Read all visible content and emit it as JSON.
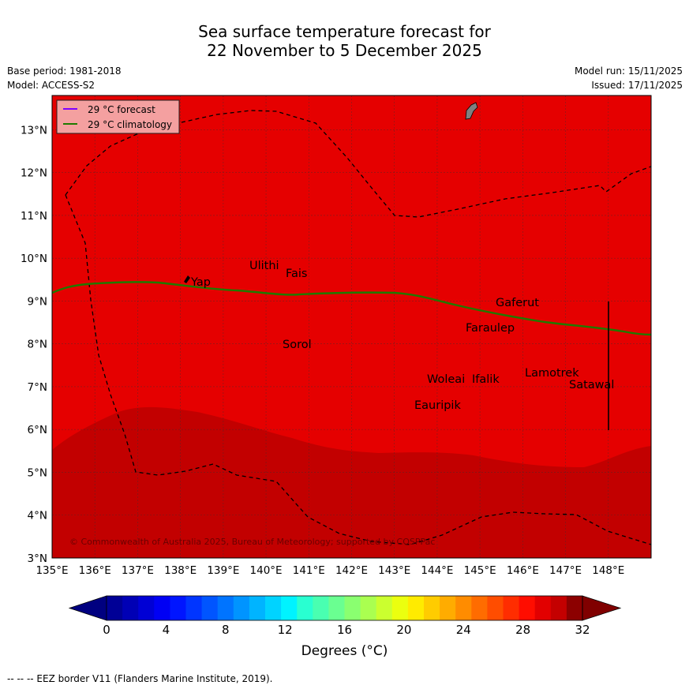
{
  "title": {
    "line1": "Sea surface temperature forecast for",
    "line2": "22 November to 5 December 2025"
  },
  "meta_left": {
    "base_period": "Base period: 1981-2018",
    "model": "Model: ACCESS-S2"
  },
  "meta_right": {
    "model_run": "Model run: 15/11/2025",
    "issued": "Issued: 17/11/2025"
  },
  "legend": {
    "forecast": "29 °C  forecast",
    "climatology": "29 °C  climatology",
    "forecast_color": "#7f00ff",
    "climatology_color": "#1f7a00"
  },
  "map": {
    "lon_range": [
      135,
      149
    ],
    "lat_range": [
      3,
      13.8
    ],
    "lon_ticks": [
      "135°E",
      "136°E",
      "137°E",
      "138°E",
      "139°E",
      "140°E",
      "141°E",
      "142°E",
      "143°E",
      "144°E",
      "145°E",
      "146°E",
      "147°E",
      "148°E"
    ],
    "lat_ticks": [
      "3°N",
      "4°N",
      "5°N",
      "6°N",
      "7°N",
      "8°N",
      "9°N",
      "10°N",
      "11°N",
      "12°N",
      "13°N"
    ],
    "colors": {
      "warm": "#e50000",
      "hot": "#c20000",
      "land": "#808080"
    },
    "places": [
      "Ulithi",
      "Fais",
      "Yap",
      "Gaferut",
      "Faraulep",
      "Sorol",
      "Lamotrek",
      "Woleai",
      "Ifalik",
      "Satawal",
      "Eauripik"
    ],
    "copyright": "© Commonwealth of Australia 2025, Bureau of Meteorology; supported by COSPPac"
  },
  "colorbar": {
    "tick_labels": [
      "0",
      "4",
      "8",
      "12",
      "16",
      "20",
      "24",
      "28",
      "32"
    ],
    "label": "Degrees (°C)",
    "colors": [
      "#000096",
      "#0000b5",
      "#0000d5",
      "#0000f4",
      "#0015ff",
      "#0035ff",
      "#0055ff",
      "#0074ff",
      "#0094ff",
      "#00b4ff",
      "#00d3ff",
      "#00f3ff",
      "#29ffd1",
      "#49ffb1",
      "#6aff91",
      "#8aff70",
      "#aaff50",
      "#cbff2f",
      "#ebff0f",
      "#ffeb00",
      "#ffcc00",
      "#ffac00",
      "#ff8c00",
      "#ff6c00",
      "#ff4d00",
      "#ff2d00",
      "#ff0d00",
      "#e20000",
      "#c40000",
      "#8c0000"
    ],
    "under_color": "#000080",
    "over_color": "#800000"
  },
  "footnote": "--  --  -- EEZ border V11 (Flanders Marine Institute, 2019)."
}
